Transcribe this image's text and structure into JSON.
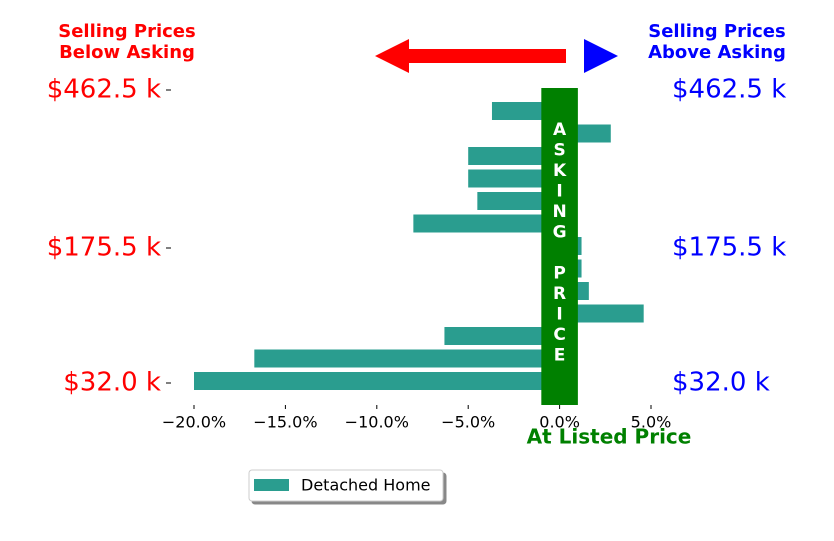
{
  "chart_data": {
    "type": "bar",
    "orientation": "horizontal",
    "left_title": [
      "Selling Prices",
      "Below Asking"
    ],
    "right_title": [
      "Selling Prices",
      "Above Asking"
    ],
    "left_title_color": "#ff0000",
    "right_title_color": "#0000ff",
    "categories": [
      "$32.0 k",
      null,
      null,
      null,
      null,
      null,
      "$175.5 k",
      null,
      null,
      null,
      null,
      null,
      null,
      "$462.5 k"
    ],
    "series": [
      {
        "name": "Detached Home",
        "color": "#2a9d8f",
        "values": [
          -20.0,
          -16.7,
          -6.3,
          4.6,
          1.6,
          1.2,
          1.2,
          -8.0,
          -4.5,
          -5.0,
          -5.0,
          2.8,
          -3.7,
          null
        ]
      }
    ],
    "xlim": [
      -21.2,
      6.1
    ],
    "xticks": [
      {
        "value": -20,
        "label": "−20.0%"
      },
      {
        "value": -15,
        "label": "−15.0%"
      },
      {
        "value": -10,
        "label": "−10.0%"
      },
      {
        "value": -5,
        "label": "−5.0%"
      },
      {
        "value": 0,
        "label": "0.0%"
      },
      {
        "value": 5,
        "label": "5.0%"
      }
    ],
    "xlabel": "At Listed Price",
    "asking_label": "ASKING PRICE",
    "asking_band": [
      -1,
      1
    ],
    "asking_color": "#008000",
    "legend": "lower left"
  }
}
